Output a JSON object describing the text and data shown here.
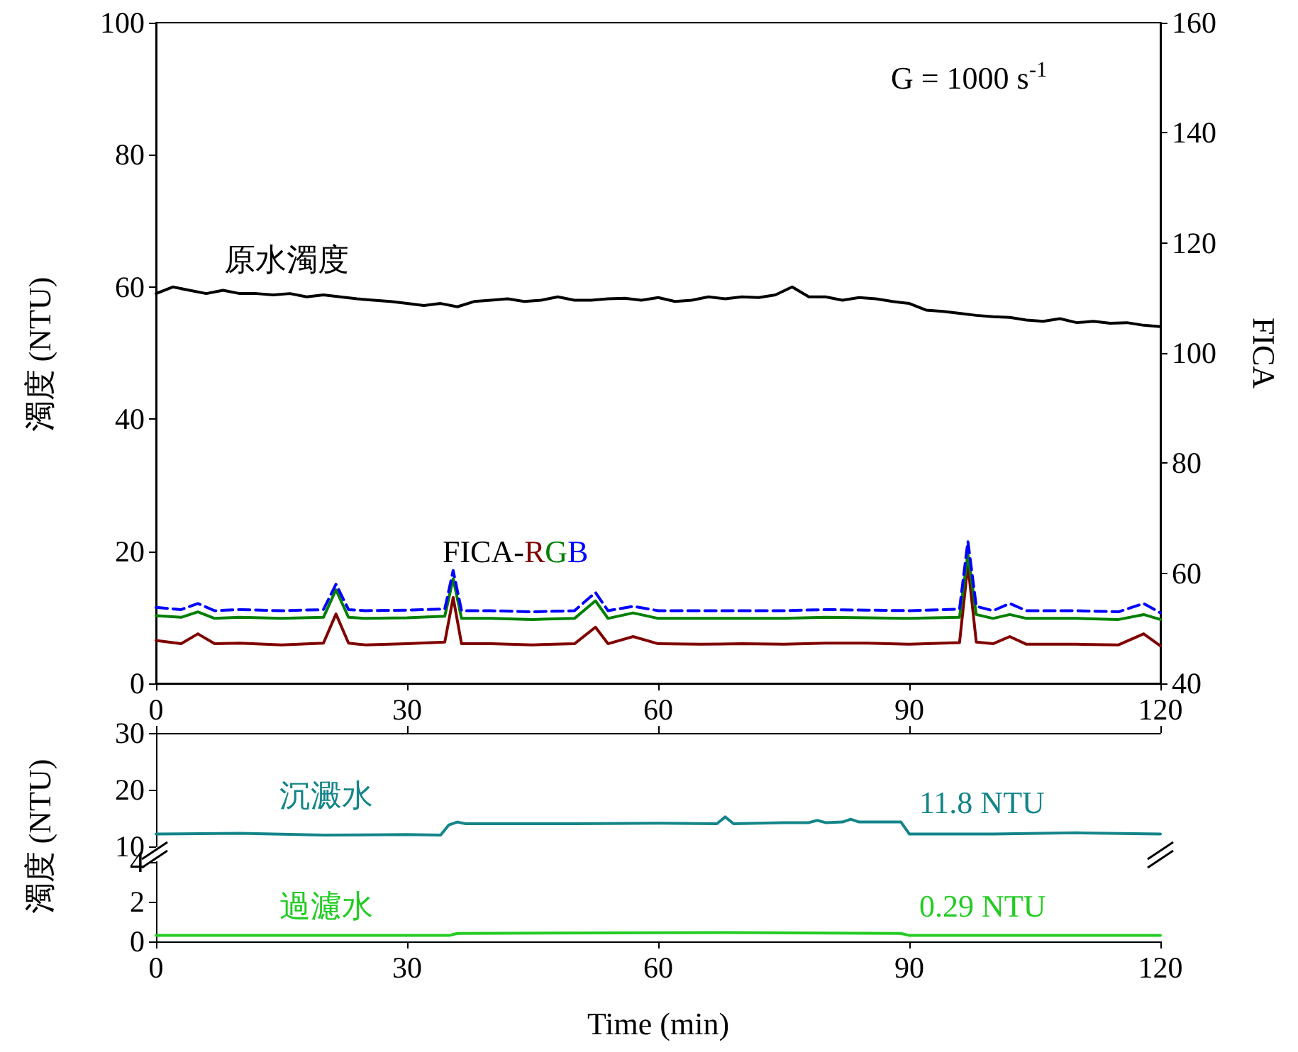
{
  "chart_data": [
    {
      "type": "line",
      "ylabel": "濁度 (NTU)",
      "y2label": "FICA",
      "annotations": [
        "G = 1000 s$^{-1}$",
        "FICA-"
      ],
      "xlim": [
        0,
        120
      ],
      "xticks": [
        0,
        30,
        60,
        90,
        120
      ],
      "ylim": [
        0,
        100
      ],
      "yticks": [
        0,
        20,
        40,
        60,
        80,
        100
      ],
      "y2lim": [
        40,
        160
      ],
      "y2ticks": [
        40,
        60,
        80,
        100,
        120,
        140,
        160
      ],
      "grid": false,
      "legend": false,
      "marker": "none",
      "series": [
        {
          "name": "原水濁度",
          "color": "#000000",
          "x": [
            0,
            2,
            4,
            6,
            8,
            10,
            12,
            14,
            16,
            18,
            20,
            22,
            24,
            26,
            28,
            30,
            32,
            34,
            36,
            38,
            40,
            42,
            44,
            46,
            48,
            50,
            52,
            54,
            56,
            58,
            60,
            62,
            64,
            66,
            68,
            70,
            72,
            74,
            76,
            78,
            80,
            82,
            84,
            86,
            88,
            90,
            92,
            94,
            96,
            98,
            100,
            102,
            104,
            106,
            108,
            110,
            112,
            114,
            116,
            118,
            120
          ],
          "values": [
            59,
            60,
            59.5,
            59,
            59.5,
            59,
            59,
            58.8,
            59,
            58.5,
            58.8,
            58.5,
            58.2,
            58,
            57.8,
            57.5,
            57.2,
            57.5,
            57,
            57.8,
            58,
            58.2,
            57.8,
            58,
            58.5,
            58,
            58,
            58.2,
            58.3,
            58,
            58.4,
            57.8,
            58,
            58.5,
            58.2,
            58.5,
            58.4,
            58.8,
            60,
            58.5,
            58.5,
            58,
            58.4,
            58.2,
            57.8,
            57.5,
            56.5,
            56.3,
            56,
            55.7,
            55.5,
            55.4,
            55,
            54.8,
            55.2,
            54.6,
            54.8,
            54.5,
            54.6,
            54.2,
            54
          ]
        },
        {
          "name": "R",
          "color": "#800000",
          "axis": "y2",
          "x": [
            0,
            3,
            5,
            7,
            10,
            15,
            20,
            21.5,
            23,
            25,
            30,
            34.5,
            35.5,
            36.5,
            40,
            45,
            50,
            52.5,
            54,
            57,
            60,
            65,
            70,
            75,
            80,
            85,
            90,
            96,
            97,
            98,
            100,
            102,
            104,
            110,
            115,
            118,
            120
          ],
          "values": [
            47.8,
            47.2,
            49,
            47.2,
            47.3,
            47,
            47.3,
            52.6,
            47.3,
            47,
            47.2,
            47.5,
            55.6,
            47.2,
            47.2,
            47,
            47.2,
            50.2,
            47.2,
            48.5,
            47.2,
            47.1,
            47.2,
            47.1,
            47.3,
            47.3,
            47.1,
            47.4,
            61.6,
            47.5,
            47.2,
            48.5,
            47.1,
            47.1,
            47,
            49,
            46.8
          ]
        },
        {
          "name": "G",
          "color": "#008000",
          "axis": "y2",
          "x": [
            0,
            3,
            5,
            7,
            10,
            15,
            20,
            21.5,
            23,
            25,
            30,
            34.5,
            35.5,
            36.5,
            40,
            45,
            50,
            52.5,
            54,
            57,
            60,
            65,
            70,
            75,
            80,
            85,
            90,
            96,
            97,
            98,
            100,
            102,
            104,
            110,
            115,
            118,
            120
          ],
          "values": [
            52.3,
            52,
            53,
            51.8,
            52,
            51.8,
            52,
            57,
            52,
            51.8,
            51.9,
            52.2,
            59,
            51.8,
            51.8,
            51.6,
            51.8,
            55,
            51.8,
            52.8,
            51.8,
            51.8,
            51.8,
            51.8,
            52,
            51.9,
            51.8,
            52,
            63.4,
            52.5,
            51.8,
            52.5,
            51.8,
            51.8,
            51.6,
            52.5,
            51.6
          ]
        },
        {
          "name": "B",
          "color": "#0000ff",
          "axis": "y2",
          "line_style": "dashed",
          "x": [
            0,
            3,
            5,
            7,
            10,
            15,
            20,
            21.5,
            23,
            25,
            30,
            34.5,
            35.5,
            36.5,
            40,
            45,
            50,
            52.5,
            54,
            57,
            60,
            65,
            70,
            75,
            80,
            85,
            90,
            96,
            97,
            98,
            100,
            102,
            104,
            110,
            115,
            118,
            120
          ],
          "values": [
            53.8,
            53.4,
            54.5,
            53.2,
            53.4,
            53.2,
            53.4,
            58,
            53.4,
            53.2,
            53.3,
            53.5,
            60.5,
            53.2,
            53.2,
            53.0,
            53.2,
            56.5,
            53.2,
            54,
            53.2,
            53.2,
            53.2,
            53.2,
            53.4,
            53.3,
            53.2,
            53.5,
            65.8,
            54,
            53.2,
            54.5,
            53.2,
            53.2,
            53.0,
            54.5,
            52.8
          ]
        }
      ]
    },
    {
      "type": "line",
      "annotations": [
        "11.8 NTU"
      ],
      "xlim": [
        0,
        120
      ],
      "xticks": [
        0,
        30,
        60,
        90,
        120
      ],
      "ylim": [
        10,
        30
      ],
      "yticks": [
        10,
        20,
        30
      ],
      "tick_labels": "y",
      "grid": false,
      "legend": false,
      "marker": "none",
      "series": [
        {
          "name": "沉澱水",
          "color": "#138589",
          "x": [
            0,
            10,
            20,
            30,
            34,
            35,
            36,
            37,
            40,
            50,
            60,
            67,
            68,
            69,
            75,
            78,
            79,
            80,
            82,
            83,
            84,
            88,
            89,
            90,
            100,
            110,
            120
          ],
          "values": [
            12.2,
            12.3,
            12,
            12.1,
            12,
            13.8,
            14.3,
            14,
            14,
            14,
            14.1,
            14,
            15.2,
            14,
            14.2,
            14.2,
            14.6,
            14.2,
            14.3,
            14.8,
            14.3,
            14.3,
            14.3,
            12.2,
            12.2,
            12.4,
            12.2
          ]
        }
      ]
    },
    {
      "type": "line",
      "ylabel": "濁度 (NTU)",
      "xlabel": "Time (min)",
      "annotations": [
        "0.29 NTU"
      ],
      "xlim": [
        0,
        120
      ],
      "xticks": [
        0,
        30,
        60,
        90,
        120
      ],
      "ylim": [
        0,
        4
      ],
      "yticks": [
        0,
        2,
        4
      ],
      "grid": false,
      "legend": false,
      "marker": "none",
      "series": [
        {
          "name": "過濾水",
          "color": "#22cc22",
          "x": [
            0,
            35,
            36,
            68,
            89,
            90,
            120
          ],
          "values": [
            0.3,
            0.3,
            0.4,
            0.45,
            0.4,
            0.3,
            0.3
          ]
        }
      ]
    }
  ]
}
